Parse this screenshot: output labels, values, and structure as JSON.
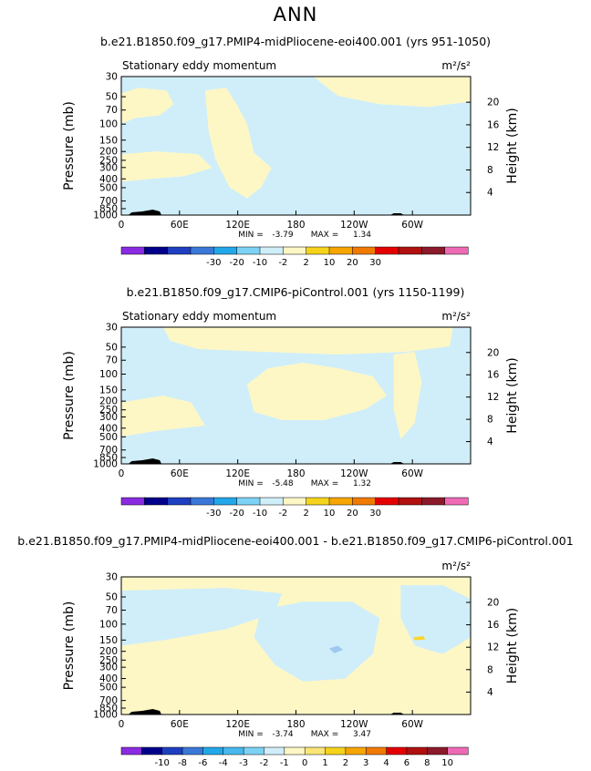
{
  "header": {
    "title": "ANN"
  },
  "colors": {
    "page_background": "#ffffff",
    "fill_light_blue": "#cfeefa",
    "fill_light_yellow": "#fdf7c6",
    "fill_blue": "#9fc8ef",
    "fill_gold": "#fbd52c",
    "topography": "#000000"
  },
  "chart_data": [
    {
      "type": "heatmap",
      "title": "b.e21.B1850.f09_g17.PMIP4-midPliocene-eoi400.001 (yrs 951-1050)",
      "subtitle": "Stationary eddy momentum",
      "units": "m²/s²",
      "ylabel": "Pressure (mb)",
      "y2label": "Height (km)",
      "x_ticks": [
        "0",
        "60E",
        "120E",
        "180",
        "120W",
        "60W"
      ],
      "y_ticks": [
        "30",
        "50",
        "70",
        "100",
        "150",
        "200",
        "250",
        "300",
        "400",
        "500",
        "700",
        "850",
        "1000"
      ],
      "y2_ticks": [
        "20",
        "16",
        "12",
        "8",
        "4"
      ],
      "xlim": [
        0,
        360
      ],
      "ylim": [
        1000,
        30
      ],
      "y_scale": "log",
      "stats": {
        "min_label": "MIN =",
        "min": "-3.79",
        "max_label": "MAX =",
        "max": "1.34"
      },
      "colorbar_labels": [
        "-30",
        "-20",
        "-10",
        "-2",
        "2",
        "10",
        "20",
        "30"
      ],
      "colorbar_colors": [
        "#8a2be2",
        "#00008b",
        "#1e3fbf",
        "#3a78d8",
        "#22a8e8",
        "#7cd2f5",
        "#cfeefa",
        "#fdf7c6",
        "#f5d31a",
        "#f7a600",
        "#f07a00",
        "#e40000",
        "#b01010",
        "#8b1a2a",
        "#ee6ab4"
      ],
      "regions": [
        {
          "fill": "light-blue",
          "label": "base"
        },
        {
          "fill": "light-yellow",
          "label": "upper-left patch"
        },
        {
          "fill": "light-yellow",
          "label": "central column"
        },
        {
          "fill": "light-yellow",
          "label": "mid-left band"
        },
        {
          "fill": "light-yellow",
          "label": "upper-right area"
        }
      ]
    },
    {
      "type": "heatmap",
      "title": "b.e21.B1850.f09_g17.CMIP6-piControl.001 (yrs 1150-1199)",
      "subtitle": "Stationary eddy momentum",
      "units": "m²/s²",
      "ylabel": "Pressure (mb)",
      "y2label": "Height (km)",
      "x_ticks": [
        "0",
        "60E",
        "120E",
        "180",
        "120W",
        "60W"
      ],
      "y_ticks": [
        "30",
        "50",
        "70",
        "100",
        "150",
        "200",
        "250",
        "300",
        "400",
        "500",
        "700",
        "850",
        "1000"
      ],
      "y2_ticks": [
        "20",
        "16",
        "12",
        "8",
        "4"
      ],
      "xlim": [
        0,
        360
      ],
      "ylim": [
        1000,
        30
      ],
      "y_scale": "log",
      "stats": {
        "min_label": "MIN =",
        "min": "-5.48",
        "max_label": "MAX =",
        "max": "1.32"
      },
      "colorbar_labels": [
        "-30",
        "-20",
        "-10",
        "-2",
        "2",
        "10",
        "20",
        "30"
      ],
      "colorbar_colors": [
        "#8a2be2",
        "#00008b",
        "#1e3fbf",
        "#3a78d8",
        "#22a8e8",
        "#7cd2f5",
        "#cfeefa",
        "#fdf7c6",
        "#f5d31a",
        "#f7a600",
        "#f07a00",
        "#e40000",
        "#b01010",
        "#8b1a2a",
        "#ee6ab4"
      ],
      "regions": [
        {
          "fill": "light-blue",
          "label": "base"
        },
        {
          "fill": "light-yellow",
          "label": "top band"
        },
        {
          "fill": "light-yellow",
          "label": "central blob"
        },
        {
          "fill": "light-yellow",
          "label": "left band"
        },
        {
          "fill": "light-yellow",
          "label": "right column"
        }
      ]
    },
    {
      "type": "heatmap",
      "title": "b.e21.B1850.f09_g17.PMIP4-midPliocene-eoi400.001 - b.e21.B1850.f09_g17.CMIP6-piControl.001",
      "subtitle": "",
      "units": "m²/s²",
      "ylabel": "Pressure (mb)",
      "y2label": "Height (km)",
      "x_ticks": [
        "0",
        "60E",
        "120E",
        "180",
        "120W",
        "60W"
      ],
      "y_ticks": [
        "30",
        "50",
        "70",
        "100",
        "150",
        "200",
        "250",
        "300",
        "400",
        "500",
        "700",
        "850",
        "1000"
      ],
      "y2_ticks": [
        "20",
        "16",
        "12",
        "8",
        "4"
      ],
      "xlim": [
        0,
        360
      ],
      "ylim": [
        1000,
        30
      ],
      "y_scale": "log",
      "stats": {
        "min_label": "MIN =",
        "min": "-3.74",
        "max_label": "MAX =",
        "max": "3.47"
      },
      "colorbar_labels": [
        "-10",
        "-8",
        "-6",
        "-4",
        "-3",
        "-2",
        "-1",
        "0",
        "1",
        "2",
        "3",
        "4",
        "6",
        "8",
        "10"
      ],
      "colorbar_colors": [
        "#8a2be2",
        "#00008b",
        "#1e3fbf",
        "#3a78d8",
        "#22a8e8",
        "#48b8ee",
        "#7cd2f5",
        "#cfeefa",
        "#fdf7c6",
        "#f9e676",
        "#f5d31a",
        "#f7a600",
        "#f07a00",
        "#e40000",
        "#b01010",
        "#8b1a2a",
        "#ee6ab4"
      ],
      "regions": [
        {
          "fill": "light-yellow",
          "label": "base"
        },
        {
          "fill": "light-blue",
          "label": "upper-left band"
        },
        {
          "fill": "light-blue",
          "label": "central region"
        },
        {
          "fill": "light-blue",
          "label": "right column"
        },
        {
          "fill": "blue",
          "label": "small negative spot"
        },
        {
          "fill": "gold",
          "label": "small positive spot"
        }
      ]
    }
  ]
}
